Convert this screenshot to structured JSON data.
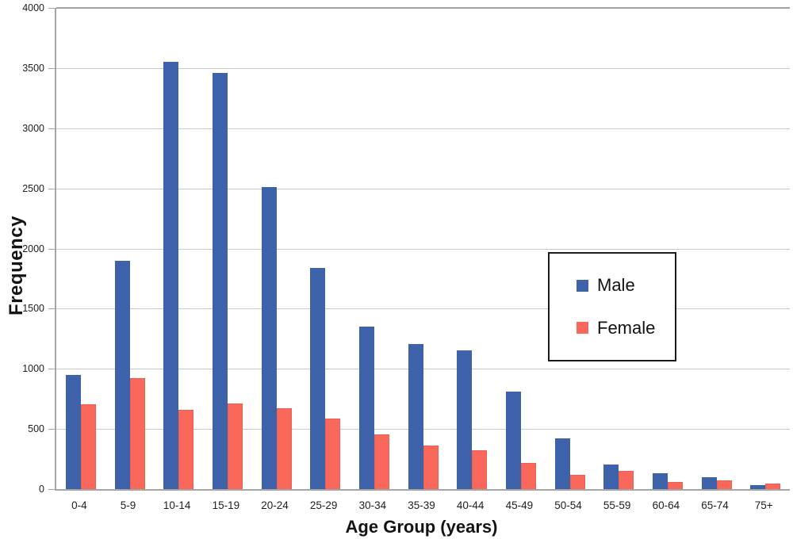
{
  "chart_data": {
    "type": "bar",
    "title": "",
    "xlabel": "Age Group (years)",
    "ylabel": "Frequency",
    "categories": [
      "0-4",
      "5-9",
      "10-14",
      "15-19",
      "20-24",
      "25-29",
      "30-34",
      "35-39",
      "40-44",
      "45-49",
      "50-54",
      "55-59",
      "60-64",
      "65-74",
      "75+"
    ],
    "series": [
      {
        "name": "Male",
        "color": "#3E62A9",
        "values": [
          950,
          1900,
          3550,
          3460,
          2510,
          1840,
          1350,
          1205,
          1150,
          810,
          425,
          205,
          135,
          100,
          35
        ]
      },
      {
        "name": "Female",
        "color": "#FA685C",
        "values": [
          705,
          925,
          660,
          710,
          670,
          585,
          455,
          360,
          320,
          215,
          120,
          150,
          60,
          70,
          45
        ]
      }
    ],
    "ylim": [
      0,
      4000
    ],
    "ytick_step": 500,
    "grid": "horizontal",
    "legend_position": "middle-right"
  },
  "colors": {
    "axis_line": "#a6a6a6",
    "gridline": "#c9c9c9",
    "text": "#1f1f1f",
    "background": "#ffffff",
    "legend_border": "#1c1c1c"
  }
}
